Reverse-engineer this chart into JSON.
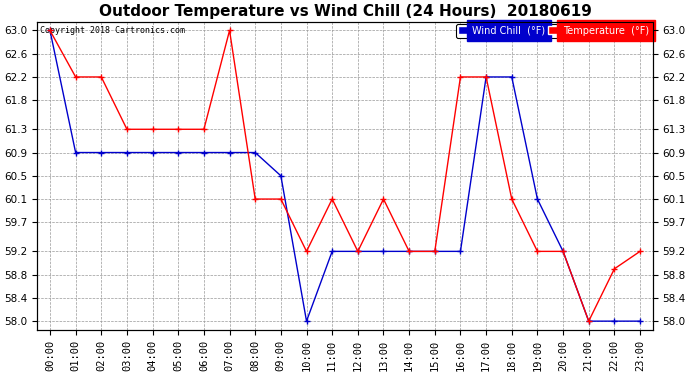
{
  "title": "Outdoor Temperature vs Wind Chill (24 Hours)  20180619",
  "copyright": "Copyright 2018 Cartronics.com",
  "legend_wind_chill": "Wind Chill  (°F)",
  "legend_temp": "Temperature  (°F)",
  "hours": [
    "00:00",
    "01:00",
    "02:00",
    "03:00",
    "04:00",
    "05:00",
    "06:00",
    "07:00",
    "08:00",
    "09:00",
    "10:00",
    "11:00",
    "12:00",
    "13:00",
    "14:00",
    "15:00",
    "16:00",
    "17:00",
    "18:00",
    "19:00",
    "20:00",
    "21:00",
    "22:00",
    "23:00"
  ],
  "temperature": [
    63.0,
    62.2,
    62.2,
    61.3,
    61.3,
    61.3,
    61.3,
    63.0,
    60.1,
    60.1,
    59.2,
    60.1,
    59.2,
    60.1,
    59.2,
    59.2,
    62.2,
    62.2,
    60.1,
    59.2,
    59.2,
    58.0,
    58.9,
    59.2
  ],
  "wind_chill": [
    63.0,
    60.9,
    60.9,
    60.9,
    60.9,
    60.9,
    60.9,
    60.9,
    60.9,
    60.5,
    58.0,
    59.2,
    59.2,
    59.2,
    59.2,
    59.2,
    59.2,
    62.2,
    62.2,
    60.1,
    59.2,
    58.0,
    58.0,
    58.0
  ],
  "ylim_min": 57.85,
  "ylim_max": 63.15,
  "yticks": [
    58.0,
    58.4,
    58.8,
    59.2,
    59.7,
    60.1,
    60.5,
    60.9,
    61.3,
    61.8,
    62.2,
    62.6,
    63.0
  ],
  "temp_color": "#ff0000",
  "wind_chill_color": "#0000cc",
  "bg_color": "#ffffff",
  "plot_bg_color": "#ffffff",
  "grid_color": "#999999",
  "title_fontsize": 11,
  "axis_fontsize": 7.5,
  "legend_bg_wind": "#0000cc",
  "legend_bg_temp": "#ff0000"
}
